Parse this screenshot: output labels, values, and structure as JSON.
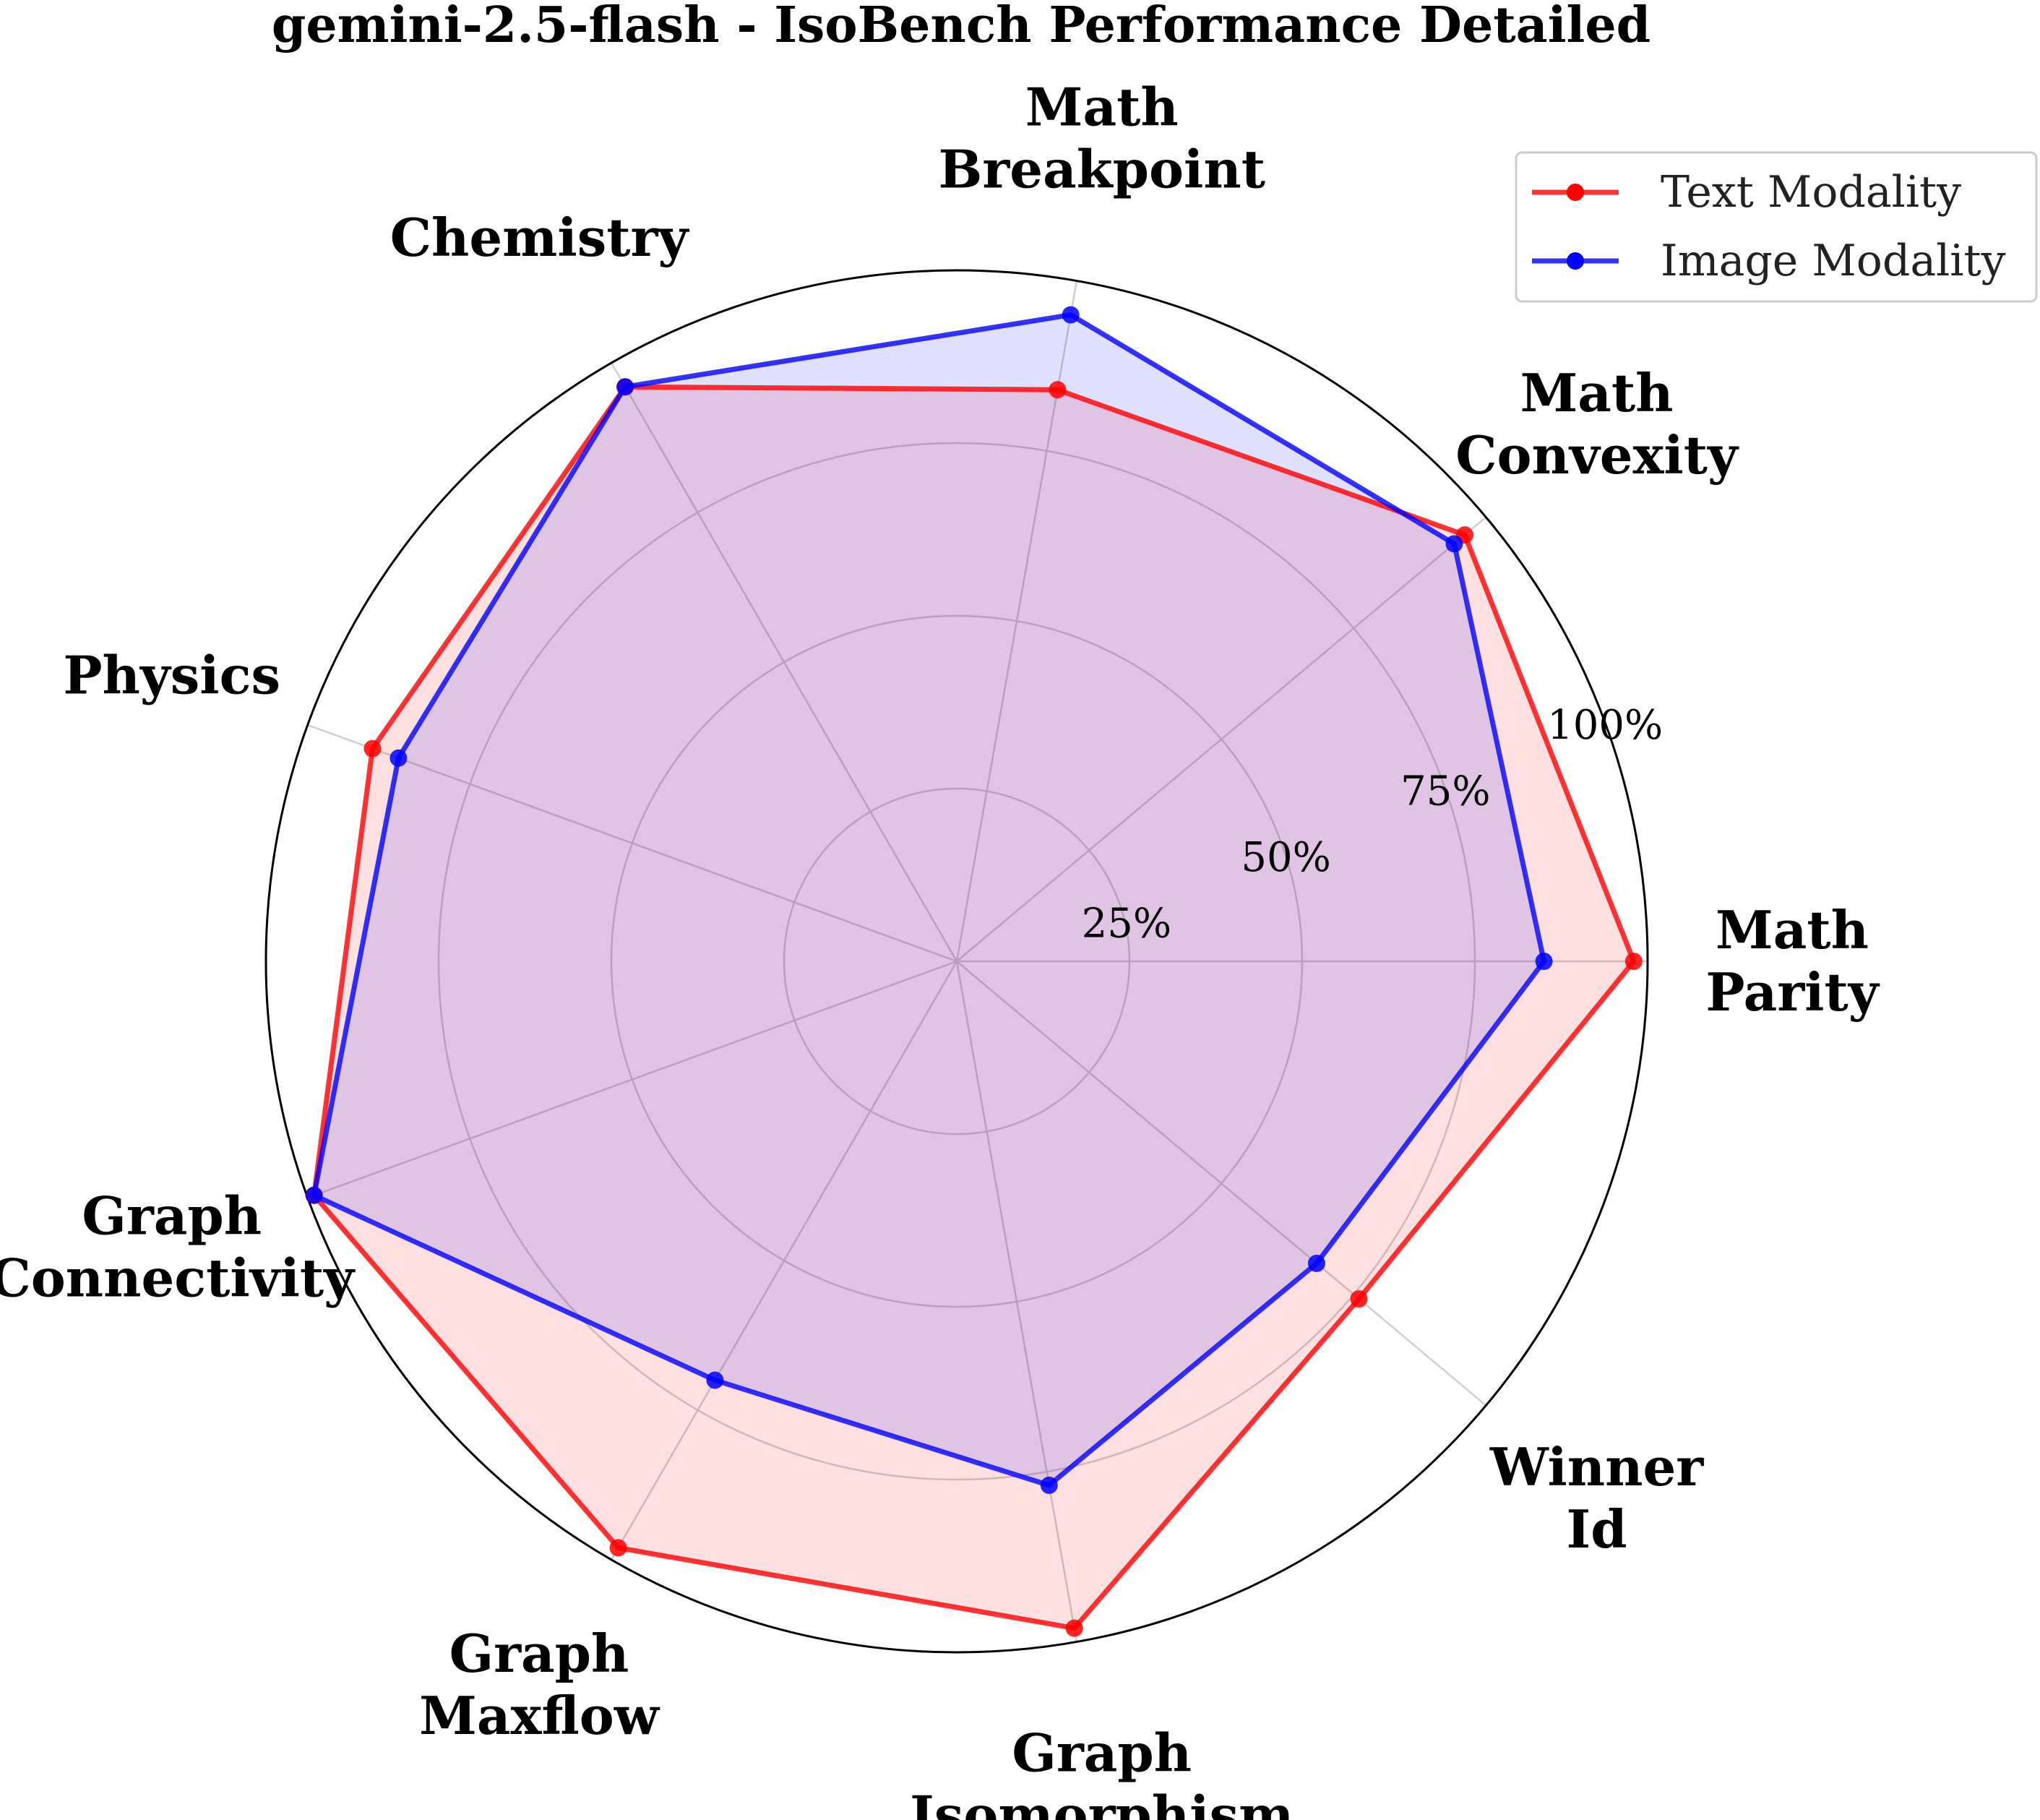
{
  "chart_data": {
    "type": "radar",
    "title": "gemini-2.5-flash - IsoBench Performance Detailed",
    "categories": [
      [
        "Math",
        "Parity"
      ],
      [
        "Math",
        "Convexity"
      ],
      [
        "Math",
        "Breakpoint"
      ],
      [
        "Chemistry"
      ],
      [
        "Physics"
      ],
      [
        "Graph",
        "Connectivity"
      ],
      [
        "Graph",
        "Maxflow"
      ],
      [
        "Graph",
        "Isomorphism"
      ],
      [
        "Winner",
        "Id"
      ]
    ],
    "r_ticks": [
      25,
      50,
      75,
      100
    ],
    "r_tick_labels": [
      "25%",
      "50%",
      "75%",
      "100%"
    ],
    "r_range": [
      0,
      100
    ],
    "grid": true,
    "legend_position": "top-right",
    "series": [
      {
        "name": "Text Modality",
        "color": "#ff0000",
        "values": [
          98,
          96,
          84,
          96,
          90,
          99,
          98,
          98,
          76
        ]
      },
      {
        "name": "Image Modality",
        "color": "#0000ff",
        "values": [
          85,
          94,
          95,
          96,
          86,
          99,
          70,
          77,
          68
        ]
      }
    ]
  }
}
